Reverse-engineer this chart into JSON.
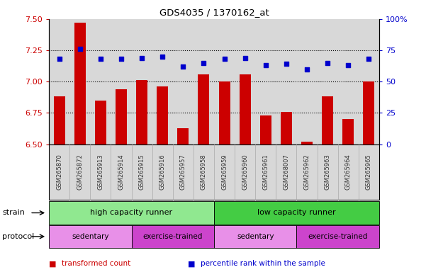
{
  "title": "GDS4035 / 1370162_at",
  "samples": [
    "GSM265870",
    "GSM265872",
    "GSM265913",
    "GSM265914",
    "GSM265915",
    "GSM265916",
    "GSM265957",
    "GSM265958",
    "GSM265959",
    "GSM265960",
    "GSM265961",
    "GSM268007",
    "GSM265962",
    "GSM265963",
    "GSM265964",
    "GSM265965"
  ],
  "bar_values": [
    6.88,
    7.47,
    6.85,
    6.94,
    7.01,
    6.96,
    6.63,
    7.06,
    7.0,
    7.06,
    6.73,
    6.76,
    6.52,
    6.88,
    6.7,
    7.0
  ],
  "dot_values": [
    68,
    76,
    68,
    68,
    69,
    70,
    62,
    65,
    68,
    69,
    63,
    64,
    60,
    65,
    63,
    68
  ],
  "bar_color": "#cc0000",
  "dot_color": "#0000cc",
  "ylim_left": [
    6.5,
    7.5
  ],
  "ylim_right": [
    0,
    100
  ],
  "yticks_left": [
    6.5,
    6.75,
    7.0,
    7.25,
    7.5
  ],
  "yticks_right": [
    0,
    25,
    50,
    75,
    100
  ],
  "ytick_labels_right": [
    "0",
    "25",
    "50",
    "75",
    "100%"
  ],
  "hlines": [
    6.75,
    7.0,
    7.25
  ],
  "strain_groups": [
    {
      "label": "high capacity runner",
      "start": 0,
      "end": 8,
      "color": "#90e890"
    },
    {
      "label": "low capacity runner",
      "start": 8,
      "end": 16,
      "color": "#44cc44"
    }
  ],
  "protocol_groups": [
    {
      "label": "sedentary",
      "start": 0,
      "end": 4,
      "color": "#e890e8"
    },
    {
      "label": "exercise-trained",
      "start": 4,
      "end": 8,
      "color": "#cc44cc"
    },
    {
      "label": "sedentary",
      "start": 8,
      "end": 12,
      "color": "#e890e8"
    },
    {
      "label": "exercise-trained",
      "start": 12,
      "end": 16,
      "color": "#cc44cc"
    }
  ],
  "legend_items": [
    {
      "label": "transformed count",
      "color": "#cc0000"
    },
    {
      "label": "percentile rank within the sample",
      "color": "#0000cc"
    }
  ],
  "strain_label": "strain",
  "protocol_label": "protocol",
  "plot_bg_color": "#d8d8d8",
  "bar_width": 0.55,
  "fig_width": 6.01,
  "fig_height": 3.84,
  "dpi": 100
}
